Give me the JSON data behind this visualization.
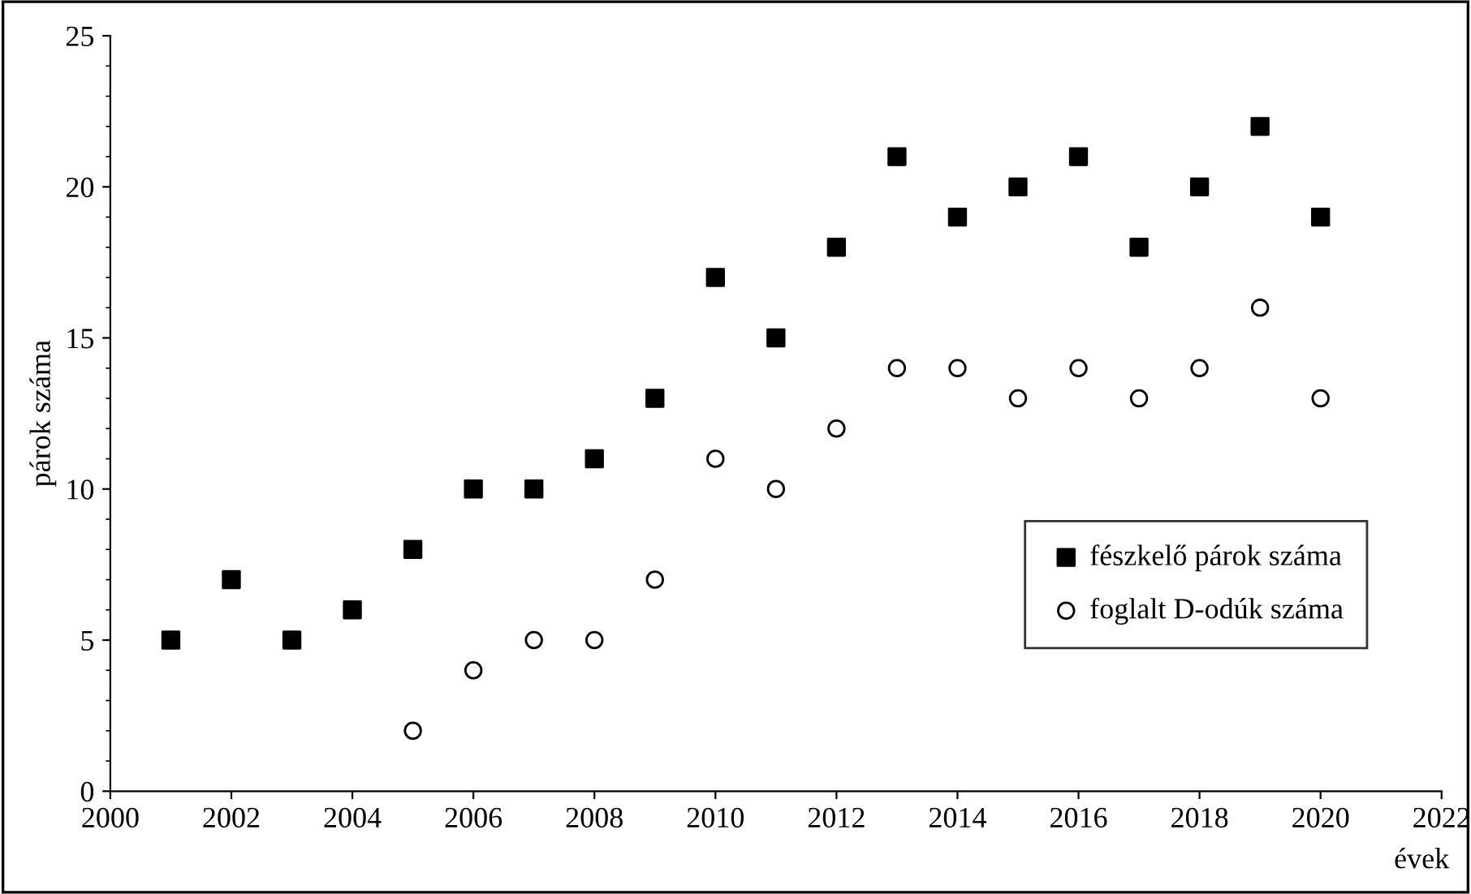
{
  "chart_data": {
    "type": "scatter",
    "xlabel": "évek",
    "ylabel": "párok száma",
    "xlim": [
      2000,
      2022
    ],
    "xticks": [
      2000,
      2002,
      2004,
      2006,
      2008,
      2010,
      2012,
      2014,
      2016,
      2018,
      2020,
      2022
    ],
    "ylim": [
      0,
      25
    ],
    "yticks": [
      0,
      5,
      10,
      15,
      20,
      25
    ],
    "grid": false,
    "legend": "lower right",
    "series": [
      {
        "name": "fészkelő párok száma",
        "color": "#000000",
        "marker": "square",
        "x": [
          2001,
          2002,
          2003,
          2004,
          2005,
          2006,
          2007,
          2008,
          2009,
          2010,
          2011,
          2012,
          2013,
          2014,
          2015,
          2016,
          2017,
          2018,
          2019,
          2020
        ],
        "values": [
          5,
          7,
          5,
          6,
          8,
          10,
          10,
          11,
          13,
          17,
          15,
          18,
          21,
          19,
          20,
          21,
          18,
          20,
          22,
          19
        ]
      },
      {
        "name": "foglalt D-odúk száma",
        "color": "#000000",
        "marker": "circle",
        "x": [
          2005,
          2006,
          2007,
          2008,
          2009,
          2010,
          2011,
          2012,
          2013,
          2014,
          2015,
          2016,
          2017,
          2018,
          2019,
          2020
        ],
        "values": [
          2,
          4,
          5,
          5,
          7,
          11,
          10,
          12,
          14,
          14,
          13,
          14,
          13,
          14,
          16,
          13
        ]
      }
    ]
  }
}
